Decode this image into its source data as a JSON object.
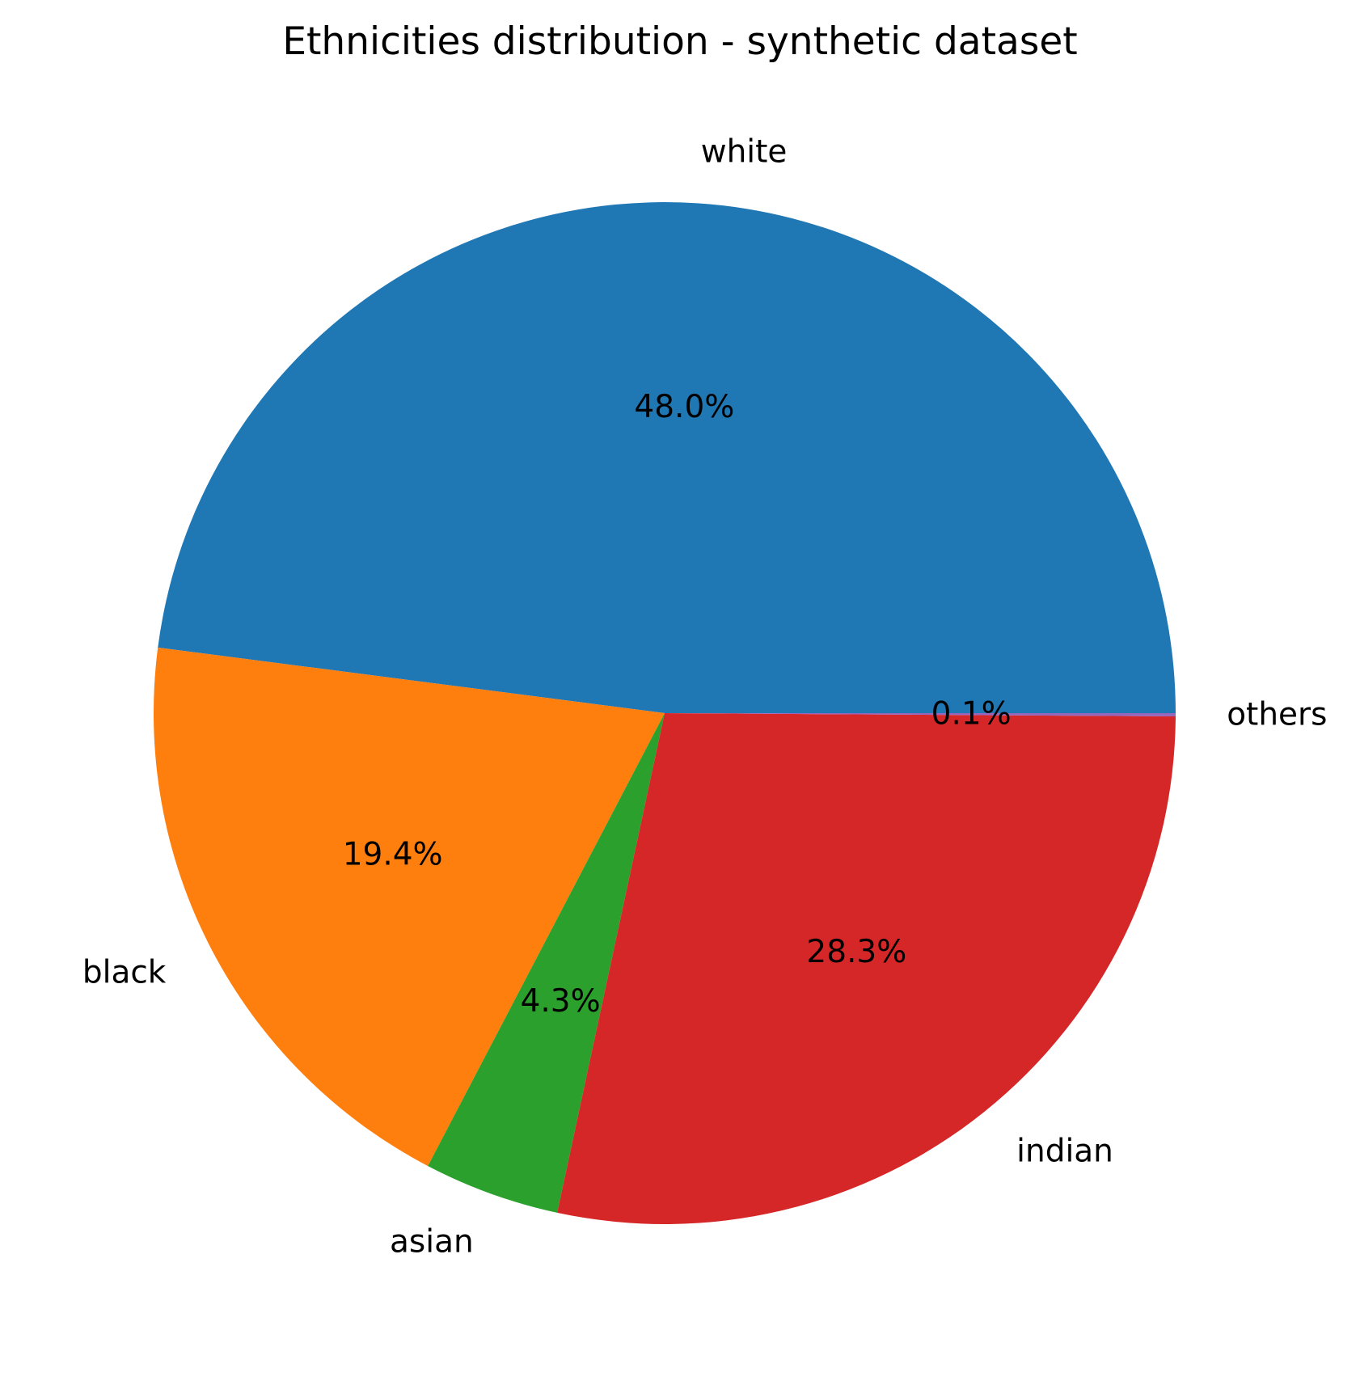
{
  "chart_data": {
    "type": "pie",
    "title": "Ethnicities distribution - synthetic dataset",
    "start_angle": "counterclockwise from 0° (3 o'clock)",
    "slices": [
      {
        "label": "white",
        "value": 48.0,
        "pct_label": "48.0%",
        "color": "#1f77b4"
      },
      {
        "label": "black",
        "value": 19.4,
        "pct_label": "19.4%",
        "color": "#ff7f0e"
      },
      {
        "label": "asian",
        "value": 4.3,
        "pct_label": "4.3%",
        "color": "#2ca02c"
      },
      {
        "label": "indian",
        "value": 28.3,
        "pct_label": "28.3%",
        "color": "#d62728"
      },
      {
        "label": "others",
        "value": 0.1,
        "pct_label": "0.1%",
        "color": "#9467bd"
      }
    ]
  }
}
